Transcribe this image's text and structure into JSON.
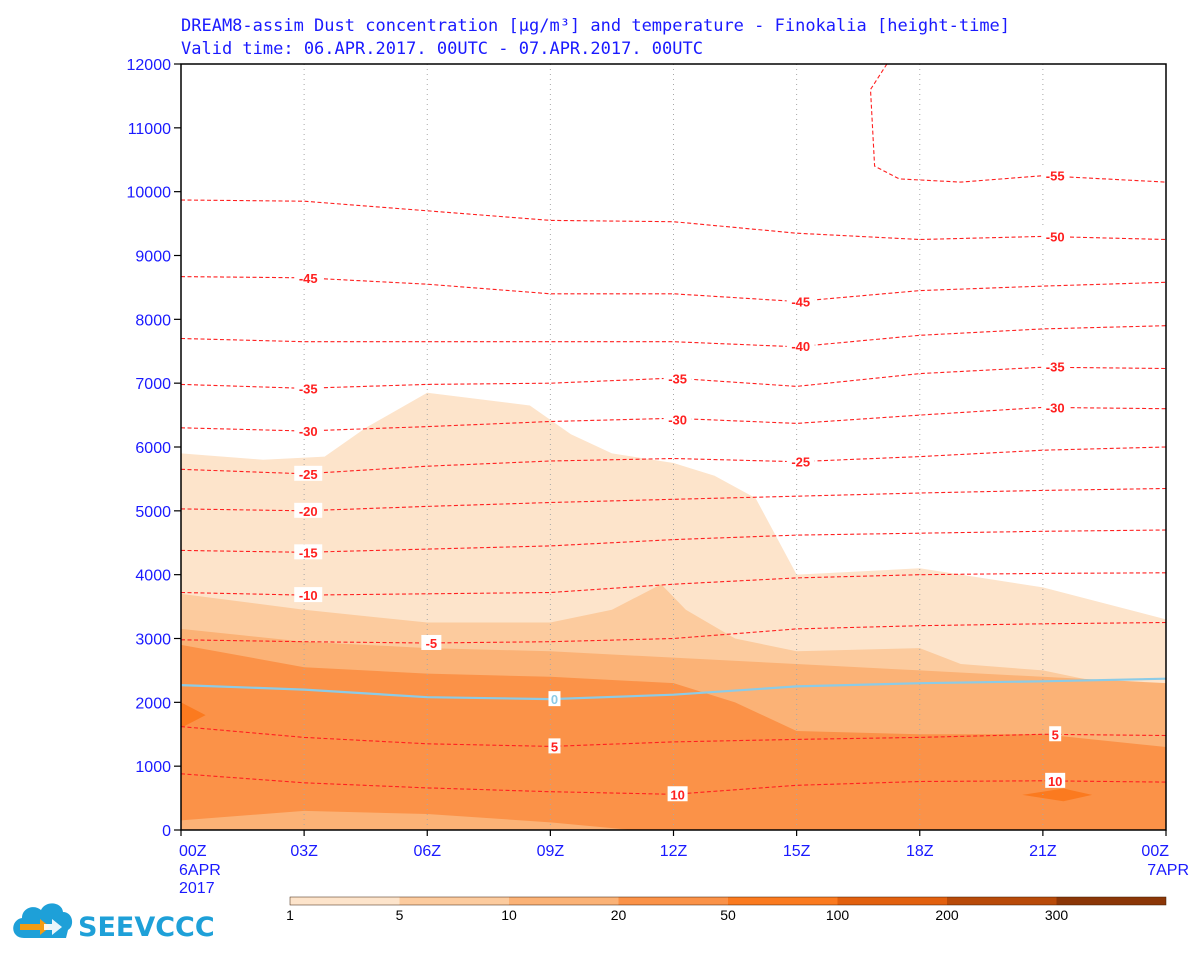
{
  "title": {
    "line1": "DREAM8-assim Dust concentration [μg/m³] and temperature - Finokalia [height-time]",
    "line2": "Valid time:  06.APR.2017. 00UTC - 07.APR.2017. 00UTC"
  },
  "logo": {
    "text": "SEEVCCC",
    "icon": "cloud-arrow-icon"
  },
  "colors": {
    "text": "#1a1aff",
    "isotherm": "#ff2020",
    "zero_isotherm": "#8ccbe6",
    "levels": [
      "#fde4cb",
      "#fccb9e",
      "#fbb276",
      "#fb9248",
      "#fb7a1f",
      "#e2600e",
      "#b84a09",
      "#8b3607",
      "#6b2a05"
    ]
  },
  "chart_data": {
    "type": "area",
    "x_ticks": [
      "00Z",
      "03Z",
      "06Z",
      "09Z",
      "12Z",
      "15Z",
      "18Z",
      "21Z",
      "00Z"
    ],
    "x_sublabels": {
      "start": [
        "6APR",
        "2017"
      ],
      "end": [
        "7APR"
      ]
    },
    "x_hours": [
      0,
      3,
      6,
      9,
      12,
      15,
      18,
      21,
      24
    ],
    "xlim": [
      0,
      24
    ],
    "y_ticks": [
      0,
      1000,
      2000,
      3000,
      4000,
      5000,
      6000,
      7000,
      8000,
      9000,
      10000,
      11000,
      12000
    ],
    "ylim": [
      0,
      12000
    ],
    "grid": "vertical dotted",
    "colorbar": {
      "thresholds": [
        "1",
        "5",
        "10",
        "20",
        "50",
        "100",
        "200",
        "300"
      ]
    },
    "dust_layers": [
      {
        "min": 1,
        "top": [
          [
            0,
            5900
          ],
          [
            2,
            5800
          ],
          [
            3.5,
            5850
          ],
          [
            4.5,
            6300
          ],
          [
            6,
            6850
          ],
          [
            8.5,
            6650
          ],
          [
            9.5,
            6200
          ],
          [
            10.5,
            5900
          ],
          [
            12,
            5750
          ],
          [
            13,
            5550
          ],
          [
            14,
            5200
          ],
          [
            15,
            4000
          ],
          [
            18,
            4100
          ],
          [
            21,
            3800
          ],
          [
            24,
            3300
          ]
        ]
      },
      {
        "min": 5,
        "top": [
          [
            0,
            3700
          ],
          [
            3,
            3450
          ],
          [
            6,
            3250
          ],
          [
            9,
            3250
          ],
          [
            10.5,
            3450
          ],
          [
            11.7,
            3850
          ],
          [
            12.3,
            3450
          ],
          [
            13.5,
            3000
          ],
          [
            15,
            2800
          ],
          [
            18,
            2850
          ],
          [
            19,
            2600
          ],
          [
            21,
            2500
          ],
          [
            24,
            2100
          ]
        ]
      },
      {
        "min": 10,
        "top": [
          [
            0,
            3150
          ],
          [
            3,
            2950
          ],
          [
            6,
            2850
          ],
          [
            9,
            2800
          ],
          [
            12,
            2700
          ],
          [
            15,
            2600
          ],
          [
            18,
            2500
          ],
          [
            21,
            2400
          ],
          [
            24,
            2300
          ]
        ]
      },
      {
        "min": 20,
        "top": [
          [
            0,
            2900
          ],
          [
            3,
            2550
          ],
          [
            6,
            2450
          ],
          [
            9,
            2400
          ],
          [
            12,
            2300
          ],
          [
            13.5,
            2000
          ],
          [
            15,
            1550
          ],
          [
            18,
            1500
          ],
          [
            21,
            1500
          ],
          [
            24,
            1300
          ]
        ]
      },
      {
        "min": 50,
        "polygon": [
          [
            0,
            2000
          ],
          [
            0.6,
            1800
          ],
          [
            0,
            1600
          ]
        ]
      },
      {
        "min": 50,
        "polygon": [
          [
            20.5,
            550
          ],
          [
            21.5,
            450
          ],
          [
            22.2,
            550
          ],
          [
            21.5,
            650
          ]
        ]
      }
    ],
    "dust_bottom_layer": {
      "min": 10,
      "top": [
        [
          0,
          150
        ],
        [
          3,
          300
        ],
        [
          6,
          250
        ],
        [
          9,
          120
        ],
        [
          11,
          0
        ]
      ]
    },
    "isotherms": [
      {
        "value": "-55",
        "label_at": [
          21.3,
          10250
        ],
        "points": [
          [
            17.2,
            12000
          ],
          [
            16.8,
            11600
          ],
          [
            16.9,
            10400
          ],
          [
            17.5,
            10200
          ],
          [
            19,
            10150
          ],
          [
            21,
            10250
          ],
          [
            24,
            10150
          ]
        ]
      },
      {
        "value": "-50",
        "label_at": [
          21.3,
          9300
        ],
        "points": [
          [
            0,
            9870
          ],
          [
            3,
            9850
          ],
          [
            6,
            9700
          ],
          [
            9,
            9550
          ],
          [
            12,
            9530
          ],
          [
            15,
            9350
          ],
          [
            18,
            9250
          ],
          [
            21,
            9300
          ],
          [
            24,
            9250
          ]
        ]
      },
      {
        "value": "-45",
        "label_at": [
          3.1,
          8650
        ],
        "points": [
          [
            0,
            8670
          ],
          [
            3,
            8650
          ],
          [
            6,
            8550
          ],
          [
            9,
            8400
          ],
          [
            12,
            8400
          ],
          [
            15,
            8280
          ],
          [
            18,
            8450
          ],
          [
            21,
            8520
          ],
          [
            24,
            8580
          ]
        ]
      },
      {
        "value": "-45",
        "label_at": [
          15.1,
          8280
        ],
        "points": []
      },
      {
        "value": "-40",
        "label_at": [
          15.1,
          7580
        ],
        "points": [
          [
            0,
            7700
          ],
          [
            3,
            7650
          ],
          [
            6,
            7650
          ],
          [
            9,
            7650
          ],
          [
            12,
            7650
          ],
          [
            15,
            7570
          ],
          [
            18,
            7750
          ],
          [
            21,
            7850
          ],
          [
            24,
            7900
          ]
        ]
      },
      {
        "value": "-35",
        "label_at": [
          3.1,
          6920
        ],
        "points": [
          [
            0,
            6980
          ],
          [
            3,
            6920
          ],
          [
            6,
            6980
          ],
          [
            9,
            7000
          ],
          [
            12,
            7080
          ],
          [
            15,
            6950
          ],
          [
            18,
            7150
          ],
          [
            21,
            7250
          ],
          [
            24,
            7230
          ]
        ]
      },
      {
        "value": "-35",
        "label_at": [
          12.1,
          7070
        ],
        "points": []
      },
      {
        "value": "-35",
        "label_at": [
          21.3,
          7260
        ],
        "points": []
      },
      {
        "value": "-30",
        "label_at": [
          3.1,
          6250
        ],
        "points": [
          [
            0,
            6300
          ],
          [
            3,
            6250
          ],
          [
            6,
            6320
          ],
          [
            9,
            6400
          ],
          [
            12,
            6450
          ],
          [
            15,
            6370
          ],
          [
            18,
            6500
          ],
          [
            21,
            6620
          ],
          [
            24,
            6600
          ]
        ]
      },
      {
        "value": "-30",
        "label_at": [
          12.1,
          6430
        ],
        "points": []
      },
      {
        "value": "-30",
        "label_at": [
          21.3,
          6620
        ],
        "points": []
      },
      {
        "value": "-25",
        "label_at": [
          3.1,
          5580
        ],
        "points": [
          [
            0,
            5650
          ],
          [
            3,
            5580
          ],
          [
            6,
            5700
          ],
          [
            9,
            5780
          ],
          [
            12,
            5820
          ],
          [
            15,
            5770
          ],
          [
            18,
            5850
          ],
          [
            21,
            5950
          ],
          [
            24,
            6000
          ]
        ]
      },
      {
        "value": "-25",
        "label_at": [
          15.1,
          5770
        ],
        "points": []
      },
      {
        "value": "-20",
        "label_at": [
          3.1,
          5000
        ],
        "points": [
          [
            0,
            5030
          ],
          [
            3,
            5000
          ],
          [
            6,
            5070
          ],
          [
            9,
            5130
          ],
          [
            12,
            5180
          ],
          [
            15,
            5230
          ],
          [
            18,
            5280
          ],
          [
            21,
            5320
          ],
          [
            24,
            5350
          ]
        ]
      },
      {
        "value": "-15",
        "label_at": [
          3.1,
          4350
        ],
        "points": [
          [
            0,
            4380
          ],
          [
            3,
            4350
          ],
          [
            6,
            4400
          ],
          [
            9,
            4450
          ],
          [
            12,
            4550
          ],
          [
            15,
            4620
          ],
          [
            18,
            4650
          ],
          [
            21,
            4680
          ],
          [
            24,
            4700
          ]
        ]
      },
      {
        "value": "-10",
        "label_at": [
          3.1,
          3680
        ],
        "points": [
          [
            0,
            3720
          ],
          [
            3,
            3680
          ],
          [
            6,
            3700
          ],
          [
            9,
            3720
          ],
          [
            12,
            3850
          ],
          [
            15,
            3950
          ],
          [
            18,
            4000
          ],
          [
            21,
            4020
          ],
          [
            24,
            4030
          ]
        ]
      },
      {
        "value": "-5",
        "label_at": [
          6.1,
          2930
        ],
        "points": [
          [
            0,
            2980
          ],
          [
            3,
            2950
          ],
          [
            6,
            2930
          ],
          [
            9,
            2950
          ],
          [
            12,
            3000
          ],
          [
            15,
            3150
          ],
          [
            18,
            3200
          ],
          [
            21,
            3230
          ],
          [
            24,
            3250
          ]
        ]
      },
      {
        "value": "0",
        "zero": true,
        "label_at": [
          9.1,
          2050
        ],
        "points": [
          [
            0,
            2270
          ],
          [
            3,
            2200
          ],
          [
            6,
            2080
          ],
          [
            9,
            2050
          ],
          [
            12,
            2120
          ],
          [
            15,
            2250
          ],
          [
            18,
            2300
          ],
          [
            21,
            2330
          ],
          [
            24,
            2370
          ]
        ]
      },
      {
        "value": "5",
        "label_at": [
          9.1,
          1310
        ],
        "points": [
          [
            0,
            1620
          ],
          [
            3,
            1450
          ],
          [
            6,
            1350
          ],
          [
            9,
            1310
          ],
          [
            12,
            1380
          ],
          [
            15,
            1420
          ],
          [
            18,
            1450
          ],
          [
            21,
            1500
          ],
          [
            24,
            1480
          ]
        ]
      },
      {
        "value": "5",
        "label_at": [
          21.3,
          1500
        ],
        "points": []
      },
      {
        "value": "10",
        "label_at": [
          12.1,
          560
        ],
        "points": [
          [
            0,
            880
          ],
          [
            3,
            740
          ],
          [
            6,
            660
          ],
          [
            9,
            600
          ],
          [
            12,
            560
          ],
          [
            15,
            700
          ],
          [
            18,
            760
          ],
          [
            21,
            770
          ],
          [
            24,
            750
          ]
        ]
      },
      {
        "value": "10",
        "label_at": [
          21.3,
          770
        ],
        "points": []
      }
    ]
  }
}
